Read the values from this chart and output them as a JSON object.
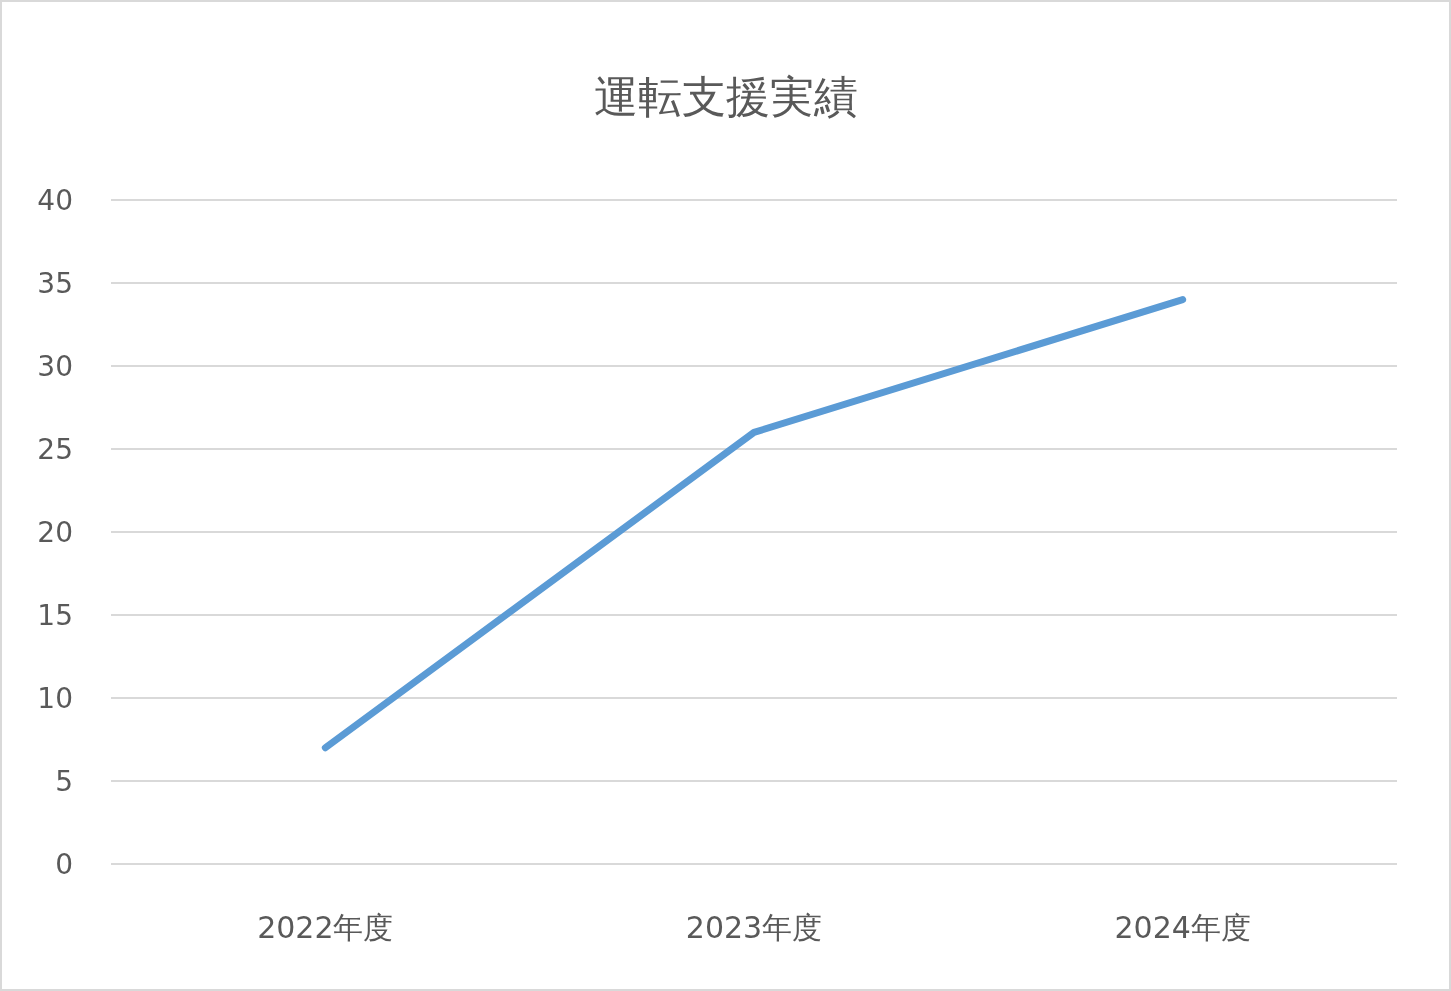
{
  "chart_data": {
    "type": "line",
    "title": "運転支援実績",
    "categories": [
      "2022年度",
      "2023年度",
      "2024年度"
    ],
    "series": [
      {
        "color": "#5b9bd5",
        "values": [
          7,
          26,
          34
        ]
      }
    ],
    "ylim": [
      0,
      40
    ],
    "yticks": [
      0,
      5,
      10,
      15,
      20,
      25,
      30,
      35,
      40
    ],
    "grid": "y",
    "marker": "none",
    "line_style": "solid"
  }
}
